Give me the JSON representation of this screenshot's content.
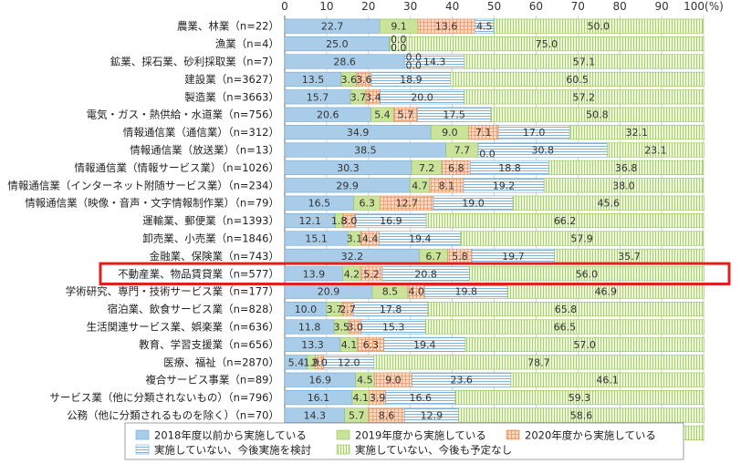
{
  "chart_data": {
    "type": "bar",
    "orientation": "horizontal",
    "stacked": true,
    "unit_label": "(%)",
    "xlim": [
      0,
      100
    ],
    "x_ticks": [
      0,
      10,
      20,
      30,
      40,
      50,
      60,
      70,
      80,
      90,
      100
    ],
    "grid": true,
    "legend_position": "bottom",
    "highlight_category": "不動産業、物品賃貸業（n=577）",
    "highlight_color": "#e0201f",
    "categories": [
      "農業、林業（n=22）",
      "漁業（n=4）",
      "鉱業、採石業、砂利採取業（n=7）",
      "建設業（n=3627）",
      "製造業（n=3663）",
      "電気・ガス・熱供給・水道業（n=756）",
      "情報通信業（通信業）（n=312）",
      "情報通信業（放送業）（n=13）",
      "情報通信業（情報サービス業）（n=1026）",
      "情報通信業（インターネット附随サービス業）（n=234）",
      "情報通信業（映像・音声・文字情報制作業）（n=79）",
      "運輸業、郵便業（n=1393）",
      "卸売業、小売業（n=1846）",
      "金融業、保険業（n=743）",
      "不動産業、物品賃貸業（n=577）",
      "学術研究、専門・技術サービス業（n=177）",
      "宿泊業、飲食サービス業（n=828）",
      "生活関連サービス業、娯楽業（n=636）",
      "教育、学習支援業（n=656）",
      "医療、福祉（n=2870）",
      "複合サービス事業（n=89）",
      "サービス業（他に分類されないもの）（n=796）",
      "公務（他に分類されるものを除く）（n=70）",
      "その他（n=246）"
    ],
    "series": [
      {
        "name": "2018年度以前から実施している",
        "color": "#a9cde8",
        "pattern": "solid",
        "values": [
          22.7,
          25.0,
          28.6,
          13.5,
          15.7,
          20.6,
          34.9,
          38.5,
          30.3,
          29.9,
          16.5,
          12.1,
          15.1,
          32.2,
          13.9,
          20.9,
          10.0,
          11.8,
          13.3,
          5.4,
          16.9,
          16.1,
          14.3,
          17.5
        ]
      },
      {
        "name": "2019年度から実施している",
        "color": "#c9e39a",
        "pattern": "solid",
        "values": [
          9.1,
          0.0,
          0.0,
          3.6,
          3.7,
          5.4,
          9.0,
          7.7,
          7.2,
          4.7,
          6.3,
          1.8,
          3.1,
          6.7,
          4.2,
          8.5,
          3.7,
          3.5,
          4.1,
          1.9,
          4.5,
          4.1,
          5.7,
          2.8
        ]
      },
      {
        "name": "2020年度から実施している",
        "color": "#f3c7a8",
        "pattern": "grid",
        "values": [
          13.6,
          0.0,
          0.0,
          3.6,
          3.4,
          5.7,
          7.1,
          0.0,
          6.8,
          8.1,
          12.7,
          3.0,
          4.4,
          5.8,
          5.2,
          4.0,
          2.7,
          3.0,
          6.3,
          2.0,
          9.0,
          3.9,
          8.6,
          2.4
        ]
      },
      {
        "name": "実施していない、今後実施を検討",
        "color": "#a9cde8",
        "pattern": "hlines",
        "values": [
          4.5,
          0.0,
          14.3,
          18.9,
          20.0,
          17.5,
          17.0,
          30.8,
          18.8,
          19.2,
          19.0,
          16.9,
          19.4,
          19.7,
          20.8,
          19.8,
          17.8,
          15.3,
          19.4,
          12.0,
          23.6,
          16.6,
          12.9,
          15.9
        ]
      },
      {
        "name": "実施していない、今後も予定なし",
        "color": "#c9e39a",
        "pattern": "vlines",
        "values": [
          50.0,
          75.0,
          57.1,
          60.5,
          57.2,
          50.8,
          32.1,
          23.1,
          36.8,
          38.0,
          45.6,
          66.2,
          57.9,
          35.7,
          56.0,
          46.9,
          65.8,
          66.5,
          57.0,
          78.7,
          46.1,
          59.3,
          58.6,
          61.4
        ]
      }
    ],
    "value_labels": [
      [
        "22.7",
        "9.1",
        "13.6",
        "4.5",
        "50.0"
      ],
      [
        "25.0",
        "0.0",
        "0.0",
        "",
        "75.0"
      ],
      [
        "28.6",
        "0.0",
        "0.0",
        "14.3",
        "57.1"
      ],
      [
        "13.5",
        "3.6",
        "3.6",
        "18.9",
        "60.5"
      ],
      [
        "15.7",
        "3.7",
        "3.4",
        "20.0",
        "57.2"
      ],
      [
        "20.6",
        "5.4",
        "5.7",
        "17.5",
        "50.8"
      ],
      [
        "34.9",
        "9.0",
        "7.1",
        "17.0",
        "32.1"
      ],
      [
        "38.5",
        "7.7",
        "0.0",
        "30.8",
        "23.1"
      ],
      [
        "30.3",
        "7.2",
        "6.8",
        "18.8",
        "36.8"
      ],
      [
        "29.9",
        "4.7",
        "8.1",
        "19.2",
        "38.0"
      ],
      [
        "16.5",
        "6.3",
        "12.7",
        "19.0",
        "45.6"
      ],
      [
        "12.1",
        "1.8",
        "3.0",
        "16.9",
        "66.2"
      ],
      [
        "15.1",
        "3.1",
        "4.4",
        "19.4",
        "57.9"
      ],
      [
        "32.2",
        "6.7",
        "5.8",
        "19.7",
        "35.7"
      ],
      [
        "13.9",
        "4.2",
        "5.2",
        "20.8",
        "56.0"
      ],
      [
        "20.9",
        "8.5",
        "4.0",
        "19.8",
        "46.9"
      ],
      [
        "10.0",
        "3.7",
        "2.7",
        "17.8",
        "65.8"
      ],
      [
        "11.8",
        "3.5",
        "3.0",
        "15.3",
        "66.5"
      ],
      [
        "13.3",
        "4.1",
        "6.3",
        "19.4",
        "57.0"
      ],
      [
        "5.4",
        "1.9",
        "2.0",
        "12.0",
        "78.7"
      ],
      [
        "16.9",
        "4.5",
        "9.0",
        "23.6",
        "46.1"
      ],
      [
        "16.1",
        "4.1",
        "3.9",
        "16.6",
        "59.3"
      ],
      [
        "14.3",
        "5.7",
        "8.6",
        "12.9",
        "58.6"
      ],
      [
        "17.5",
        "2.8",
        "2.4",
        "15.9",
        "61.4"
      ]
    ]
  }
}
